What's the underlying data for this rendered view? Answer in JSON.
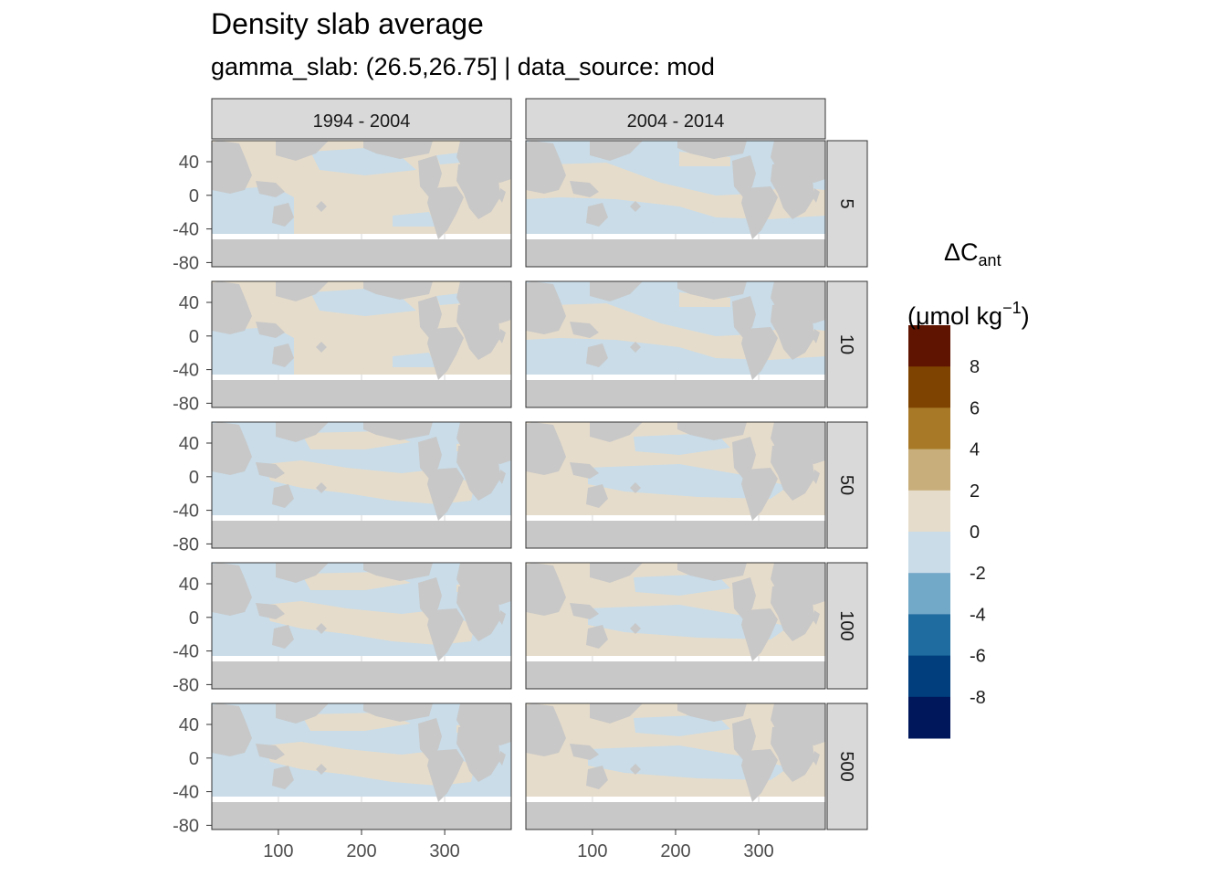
{
  "chart_data": {
    "type": "heatmap",
    "title": "Density slab average",
    "subtitle": "gamma_slab: (26.5,26.75] | data_source: mod",
    "facet_columns": [
      "1994 - 2004",
      "2004 - 2014"
    ],
    "facet_rows": [
      "5",
      "10",
      "50",
      "100",
      "500"
    ],
    "x_ticks": [
      "100",
      "200",
      "300"
    ],
    "x_tick_values": [
      100,
      200,
      300
    ],
    "y_ticks": [
      "40",
      "0",
      "-40",
      "-80"
    ],
    "y_tick_values": [
      40,
      0,
      -40,
      -80
    ],
    "xlim": [
      20,
      380
    ],
    "ylim": [
      -85,
      65
    ],
    "grid": true,
    "legend": {
      "title_main": "ΔC",
      "title_sub": "ant",
      "title_unit_open": "(μmol kg",
      "title_unit_sup": "−1",
      "title_unit_close": ")",
      "placement": "right",
      "labels": [
        "8",
        "6",
        "4",
        "2",
        "0",
        "-2",
        "-4",
        "-6",
        "-8"
      ],
      "colors": [
        "#5e1400",
        "#7e4300",
        "#a87a28",
        "#c8ae7a",
        "#e6dccb",
        "#c9dce8",
        "#72a8c8",
        "#1f6da0",
        "#003e7d",
        "#00175c"
      ]
    },
    "colors": {
      "land": "#c8c8c8",
      "panel_bg": "#ffffff",
      "strip_bg": "#d9d9d9",
      "grid": "#ebebeb",
      "positive_small": "#e6dccb",
      "negative_small": "#c9dce8"
    }
  }
}
